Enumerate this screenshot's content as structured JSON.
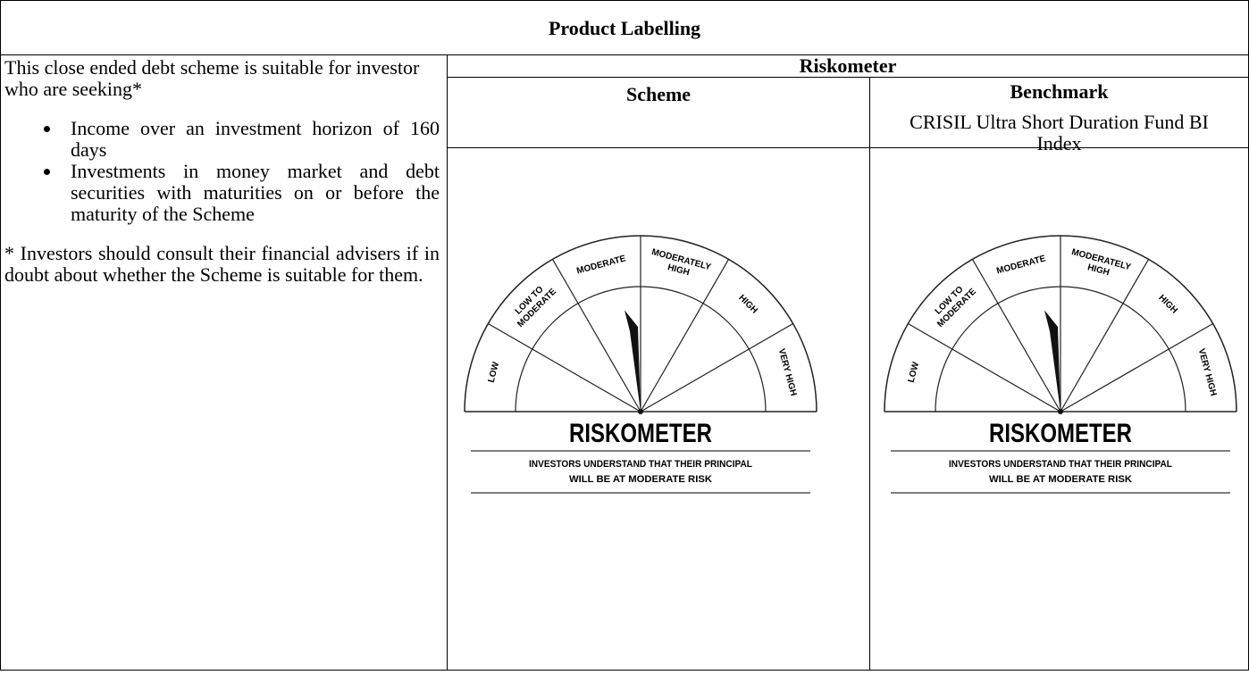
{
  "header": {
    "title": "Product Labelling"
  },
  "left": {
    "intro": "This close ended debt scheme is suitable for investor who are seeking*",
    "bullets": [
      "Income over an investment horizon of 160 days",
      "Investments in money market and debt securities with maturities on or before the maturity of the Scheme"
    ],
    "note": "* Investors should consult their financial advisers if in doubt about whether the Scheme is suitable for them."
  },
  "right": {
    "title": "Riskometer",
    "scheme": {
      "heading": "Scheme"
    },
    "benchmark": {
      "heading": "Benchmark",
      "name": "CRISIL Ultra Short Duration Fund BI Index"
    }
  },
  "riskometers": [
    {
      "labels": [
        "LOW",
        [
          "LOW TO",
          "MODERATE"
        ],
        "MODERATE",
        [
          "MODERATELY",
          "HIGH"
        ],
        "HIGH",
        "VERY HIGH"
      ],
      "title": "RISKOMETER",
      "caption": [
        "INVESTORS UNDERSTAND THAT THEIR PRINCIPAL",
        "WILL BE AT MODERATE RISK"
      ]
    },
    {
      "labels": [
        "LOW",
        [
          "LOW TO",
          "MODERATE"
        ],
        "MODERATE",
        [
          "MODERATELY",
          "HIGH"
        ],
        "HIGH",
        "VERY HIGH"
      ],
      "title": "RISKOMETER",
      "caption": [
        "INVESTORS UNDERSTAND THAT THEIR PRINCIPAL",
        "WILL BE AT MODERATE RISK"
      ]
    }
  ]
}
